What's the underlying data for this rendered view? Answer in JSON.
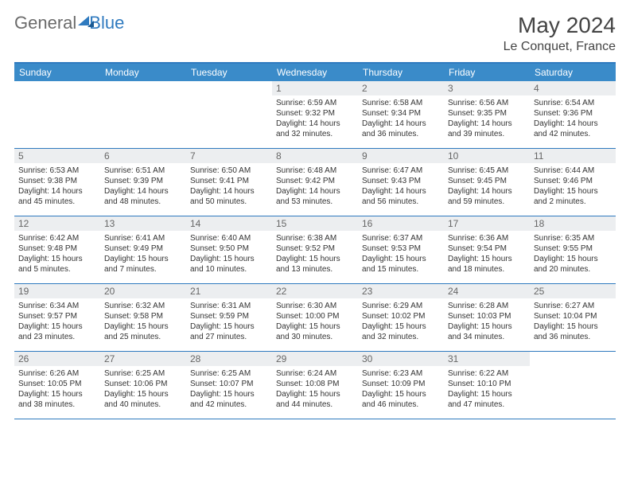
{
  "logo": {
    "text1": "General",
    "text2": "Blue"
  },
  "header": {
    "month": "May 2024",
    "location": "Le Conquet, France"
  },
  "colors": {
    "header_bar": "#3a8bc9",
    "week_border": "#2f7abf",
    "daynum_bg": "#eceef0",
    "text": "#333333",
    "title": "#444444",
    "logo_gray": "#6b6b6b",
    "logo_blue": "#2f7abf"
  },
  "dayNames": [
    "Sunday",
    "Monday",
    "Tuesday",
    "Wednesday",
    "Thursday",
    "Friday",
    "Saturday"
  ],
  "weeks": [
    [
      null,
      null,
      null,
      {
        "n": "1",
        "sunrise": "6:59 AM",
        "sunset": "9:32 PM",
        "daylight": "14 hours and 32 minutes."
      },
      {
        "n": "2",
        "sunrise": "6:58 AM",
        "sunset": "9:34 PM",
        "daylight": "14 hours and 36 minutes."
      },
      {
        "n": "3",
        "sunrise": "6:56 AM",
        "sunset": "9:35 PM",
        "daylight": "14 hours and 39 minutes."
      },
      {
        "n": "4",
        "sunrise": "6:54 AM",
        "sunset": "9:36 PM",
        "daylight": "14 hours and 42 minutes."
      }
    ],
    [
      {
        "n": "5",
        "sunrise": "6:53 AM",
        "sunset": "9:38 PM",
        "daylight": "14 hours and 45 minutes."
      },
      {
        "n": "6",
        "sunrise": "6:51 AM",
        "sunset": "9:39 PM",
        "daylight": "14 hours and 48 minutes."
      },
      {
        "n": "7",
        "sunrise": "6:50 AM",
        "sunset": "9:41 PM",
        "daylight": "14 hours and 50 minutes."
      },
      {
        "n": "8",
        "sunrise": "6:48 AM",
        "sunset": "9:42 PM",
        "daylight": "14 hours and 53 minutes."
      },
      {
        "n": "9",
        "sunrise": "6:47 AM",
        "sunset": "9:43 PM",
        "daylight": "14 hours and 56 minutes."
      },
      {
        "n": "10",
        "sunrise": "6:45 AM",
        "sunset": "9:45 PM",
        "daylight": "14 hours and 59 minutes."
      },
      {
        "n": "11",
        "sunrise": "6:44 AM",
        "sunset": "9:46 PM",
        "daylight": "15 hours and 2 minutes."
      }
    ],
    [
      {
        "n": "12",
        "sunrise": "6:42 AM",
        "sunset": "9:48 PM",
        "daylight": "15 hours and 5 minutes."
      },
      {
        "n": "13",
        "sunrise": "6:41 AM",
        "sunset": "9:49 PM",
        "daylight": "15 hours and 7 minutes."
      },
      {
        "n": "14",
        "sunrise": "6:40 AM",
        "sunset": "9:50 PM",
        "daylight": "15 hours and 10 minutes."
      },
      {
        "n": "15",
        "sunrise": "6:38 AM",
        "sunset": "9:52 PM",
        "daylight": "15 hours and 13 minutes."
      },
      {
        "n": "16",
        "sunrise": "6:37 AM",
        "sunset": "9:53 PM",
        "daylight": "15 hours and 15 minutes."
      },
      {
        "n": "17",
        "sunrise": "6:36 AM",
        "sunset": "9:54 PM",
        "daylight": "15 hours and 18 minutes."
      },
      {
        "n": "18",
        "sunrise": "6:35 AM",
        "sunset": "9:55 PM",
        "daylight": "15 hours and 20 minutes."
      }
    ],
    [
      {
        "n": "19",
        "sunrise": "6:34 AM",
        "sunset": "9:57 PM",
        "daylight": "15 hours and 23 minutes."
      },
      {
        "n": "20",
        "sunrise": "6:32 AM",
        "sunset": "9:58 PM",
        "daylight": "15 hours and 25 minutes."
      },
      {
        "n": "21",
        "sunrise": "6:31 AM",
        "sunset": "9:59 PM",
        "daylight": "15 hours and 27 minutes."
      },
      {
        "n": "22",
        "sunrise": "6:30 AM",
        "sunset": "10:00 PM",
        "daylight": "15 hours and 30 minutes."
      },
      {
        "n": "23",
        "sunrise": "6:29 AM",
        "sunset": "10:02 PM",
        "daylight": "15 hours and 32 minutes."
      },
      {
        "n": "24",
        "sunrise": "6:28 AM",
        "sunset": "10:03 PM",
        "daylight": "15 hours and 34 minutes."
      },
      {
        "n": "25",
        "sunrise": "6:27 AM",
        "sunset": "10:04 PM",
        "daylight": "15 hours and 36 minutes."
      }
    ],
    [
      {
        "n": "26",
        "sunrise": "6:26 AM",
        "sunset": "10:05 PM",
        "daylight": "15 hours and 38 minutes."
      },
      {
        "n": "27",
        "sunrise": "6:25 AM",
        "sunset": "10:06 PM",
        "daylight": "15 hours and 40 minutes."
      },
      {
        "n": "28",
        "sunrise": "6:25 AM",
        "sunset": "10:07 PM",
        "daylight": "15 hours and 42 minutes."
      },
      {
        "n": "29",
        "sunrise": "6:24 AM",
        "sunset": "10:08 PM",
        "daylight": "15 hours and 44 minutes."
      },
      {
        "n": "30",
        "sunrise": "6:23 AM",
        "sunset": "10:09 PM",
        "daylight": "15 hours and 46 minutes."
      },
      {
        "n": "31",
        "sunrise": "6:22 AM",
        "sunset": "10:10 PM",
        "daylight": "15 hours and 47 minutes."
      },
      null
    ]
  ],
  "labels": {
    "sunrise": "Sunrise:",
    "sunset": "Sunset:",
    "daylight": "Daylight:"
  }
}
